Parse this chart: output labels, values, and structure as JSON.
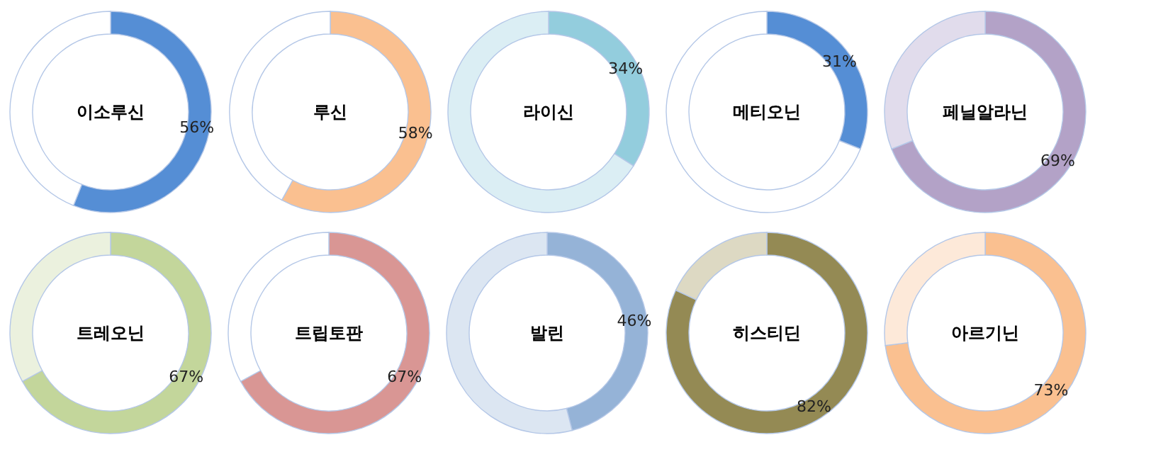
{
  "chart_data": [
    {
      "type": "donut",
      "title": "이소루신",
      "categories": [
        null,
        null
      ],
      "values": [
        56,
        44
      ],
      "colors": [
        "#558ed5",
        "#ffffff"
      ],
      "value_labels": [
        "56%",
        null
      ]
    },
    {
      "type": "donut",
      "title": "루신",
      "categories": [
        null,
        null
      ],
      "values": [
        58,
        42
      ],
      "colors": [
        "#fac090",
        "#ffffff"
      ],
      "value_labels": [
        "58%",
        null
      ]
    },
    {
      "type": "donut",
      "title": "라이신",
      "categories": [
        null,
        null
      ],
      "values": [
        34,
        66
      ],
      "colors": [
        "#93cddd",
        "#dbeef4"
      ],
      "value_labels": [
        "34%",
        null
      ]
    },
    {
      "type": "donut",
      "title": "메티오닌",
      "categories": [
        null,
        null
      ],
      "values": [
        31,
        69
      ],
      "colors": [
        "#558ed5",
        "#ffffff"
      ],
      "value_labels": [
        "31%",
        null
      ]
    },
    {
      "type": "donut",
      "title": "페닐알라닌",
      "categories": [
        null,
        null
      ],
      "values": [
        69,
        31
      ],
      "colors": [
        "#b3a2c7",
        "#e1dcec"
      ],
      "value_labels": [
        "69%",
        null
      ]
    },
    {
      "type": "donut",
      "title": "트레오닌",
      "categories": [
        null,
        null
      ],
      "values": [
        67,
        33
      ],
      "colors": [
        "#c3d69b",
        "#ebf1de"
      ],
      "value_labels": [
        "67%",
        null
      ]
    },
    {
      "type": "donut",
      "title": "트립토판",
      "categories": [
        null,
        null
      ],
      "values": [
        67,
        33
      ],
      "colors": [
        "#d99694",
        "#ffffff"
      ],
      "value_labels": [
        "67%",
        null
      ]
    },
    {
      "type": "donut",
      "title": "발린",
      "categories": [
        null,
        null
      ],
      "values": [
        46,
        54
      ],
      "colors": [
        "#95b3d7",
        "#dce6f2"
      ],
      "value_labels": [
        "46%",
        null
      ]
    },
    {
      "type": "donut",
      "title": "히스티딘",
      "categories": [
        null,
        null
      ],
      "values": [
        82,
        18
      ],
      "colors": [
        "#948a54",
        "#ddd9c3"
      ],
      "value_labels": [
        "82%",
        null
      ]
    },
    {
      "type": "donut",
      "title": "아르기닌",
      "categories": [
        null,
        null
      ],
      "values": [
        73,
        27
      ],
      "colors": [
        "#fac090",
        "#fde9d9"
      ],
      "value_labels": [
        "73%",
        null
      ]
    }
  ]
}
